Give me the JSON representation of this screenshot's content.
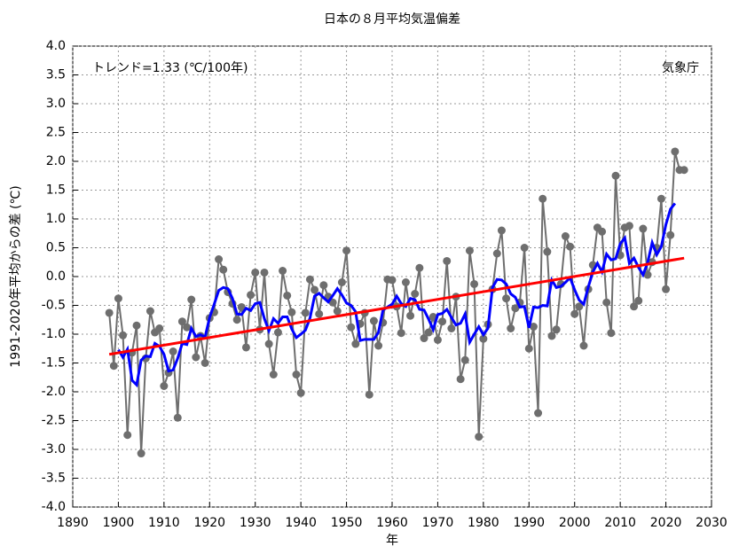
{
  "chart_data": {
    "type": "line",
    "title": "日本の８月平均気温偏差",
    "xlabel": "年",
    "ylabel": "1991-2020年平均からの差 (℃)",
    "annotations": [
      "トレンド=1.33 (℃/100年)",
      "気象庁"
    ],
    "xlim": [
      1890,
      2030
    ],
    "xticks": [
      1890,
      1900,
      1910,
      1920,
      1930,
      1940,
      1950,
      1960,
      1970,
      1980,
      1990,
      2000,
      2010,
      2020,
      2030
    ],
    "ylim": [
      -4.0,
      4.0
    ],
    "yticks": [
      {
        "value": -4.0,
        "label": "-4.0"
      },
      {
        "value": -3.5,
        "label": "-3.5"
      },
      {
        "value": -3.0,
        "label": "-3.0"
      },
      {
        "value": -2.5,
        "label": "-2.5"
      },
      {
        "value": -2.0,
        "label": "-2.0"
      },
      {
        "value": -1.5,
        "label": "-1.5"
      },
      {
        "value": -1.0,
        "label": "-1.0"
      },
      {
        "value": -0.5,
        "label": "-0.5"
      },
      {
        "value": 0,
        "label": "0.0"
      },
      {
        "value": 0.5,
        "label": "0.5"
      },
      {
        "value": 1.0,
        "label": "1.0"
      },
      {
        "value": 1.5,
        "label": "1.5"
      },
      {
        "value": 2.0,
        "label": "2.0"
      },
      {
        "value": 2.5,
        "label": "2.5"
      },
      {
        "value": 3.0,
        "label": "3.0"
      },
      {
        "value": 3.5,
        "label": "3.5"
      },
      {
        "value": 4.0,
        "label": "4.0"
      }
    ],
    "grid": true,
    "series": [
      {
        "color": "#6e6e6e",
        "marker": true,
        "width": 2,
        "x": [
          1898,
          1899,
          1900,
          1901,
          1902,
          1903,
          1904,
          1905,
          1906,
          1907,
          1908,
          1909,
          1910,
          1911,
          1912,
          1913,
          1914,
          1915,
          1916,
          1917,
          1918,
          1919,
          1920,
          1921,
          1922,
          1923,
          1924,
          1925,
          1926,
          1927,
          1928,
          1929,
          1930,
          1931,
          1932,
          1933,
          1934,
          1935,
          1936,
          1937,
          1938,
          1939,
          1940,
          1941,
          1942,
          1943,
          1944,
          1945,
          1946,
          1947,
          1948,
          1949,
          1950,
          1951,
          1952,
          1953,
          1954,
          1955,
          1956,
          1957,
          1958,
          1959,
          1960,
          1961,
          1962,
          1963,
          1964,
          1965,
          1966,
          1967,
          1968,
          1969,
          1970,
          1971,
          1972,
          1973,
          1974,
          1975,
          1976,
          1977,
          1978,
          1979,
          1980,
          1981,
          1982,
          1983,
          1984,
          1985,
          1986,
          1987,
          1988,
          1989,
          1990,
          1991,
          1992,
          1993,
          1994,
          1995,
          1996,
          1997,
          1998,
          1999,
          2000,
          2001,
          2002,
          2003,
          2004,
          2005,
          2006,
          2007,
          2008,
          2009,
          2010,
          2011,
          2012,
          2013,
          2014,
          2015,
          2016,
          2017,
          2018,
          2019,
          2020,
          2021,
          2022,
          2023,
          2024
        ],
        "values": [
          -0.63,
          -1.55,
          -0.38,
          -1.02,
          -2.75,
          -1.32,
          -0.85,
          -3.07,
          -1.42,
          -0.6,
          -0.97,
          -0.9,
          -1.9,
          -1.67,
          -1.3,
          -2.45,
          -0.78,
          -0.88,
          -0.4,
          -1.4,
          -1.03,
          -1.5,
          -0.72,
          -0.62,
          0.3,
          0.12,
          -0.27,
          -0.47,
          -0.75,
          -0.53,
          -1.23,
          -0.32,
          0.07,
          -0.92,
          0.07,
          -1.17,
          -1.7,
          -0.97,
          0.1,
          -0.33,
          -0.62,
          -1.7,
          -2.02,
          -0.63,
          -0.05,
          -0.23,
          -0.65,
          -0.15,
          -0.35,
          -0.45,
          -0.6,
          -0.1,
          0.45,
          -0.88,
          -1.17,
          -0.82,
          -0.63,
          -2.05,
          -0.77,
          -1.2,
          -0.8,
          -0.05,
          -0.06,
          -0.52,
          -0.98,
          -0.1,
          -0.68,
          -0.3,
          0.15,
          -1.07,
          -0.97,
          -0.7,
          -1.1,
          -0.78,
          0.27,
          -0.9,
          -0.35,
          -1.78,
          -1.45,
          0.45,
          -0.13,
          -2.78,
          -1.08,
          -0.83,
          -0.22,
          0.4,
          0.8,
          -0.38,
          -0.9,
          -0.55,
          -0.45,
          0.5,
          -1.25,
          -0.87,
          -2.37,
          1.35,
          0.43,
          -1.03,
          -0.92,
          -0.13,
          0.7,
          0.52,
          -0.65,
          -0.52,
          -1.2,
          -0.22,
          0.2,
          0.85,
          0.78,
          -0.45,
          -0.98,
          1.75,
          0.37,
          0.85,
          0.88,
          -0.52,
          -0.42,
          0.83,
          0.03,
          0.25,
          0.5,
          1.35,
          -0.22,
          0.72,
          2.17,
          1.85,
          1.85
        ]
      },
      {
        "color": "#0000ff",
        "marker": false,
        "width": 3,
        "x": [
          1900,
          1901,
          1902,
          1903,
          1904,
          1905,
          1906,
          1907,
          1908,
          1909,
          1910,
          1911,
          1912,
          1913,
          1914,
          1915,
          1916,
          1917,
          1918,
          1919,
          1920,
          1921,
          1922,
          1923,
          1924,
          1925,
          1926,
          1927,
          1928,
          1929,
          1930,
          1931,
          1932,
          1933,
          1934,
          1935,
          1936,
          1937,
          1938,
          1939,
          1940,
          1941,
          1942,
          1943,
          1944,
          1945,
          1946,
          1947,
          1948,
          1949,
          1950,
          1951,
          1952,
          1953,
          1954,
          1955,
          1956,
          1957,
          1958,
          1959,
          1960,
          1961,
          1962,
          1963,
          1964,
          1965,
          1966,
          1967,
          1968,
          1969,
          1970,
          1971,
          1972,
          1973,
          1974,
          1975,
          1976,
          1977,
          1978,
          1979,
          1980,
          1981,
          1982,
          1983,
          1984,
          1985,
          1986,
          1987,
          1988,
          1989,
          1990,
          1991,
          1992,
          1993,
          1994,
          1995,
          1996,
          1997,
          1998,
          1999,
          2000,
          2001,
          2002,
          2003,
          2004,
          2005,
          2006,
          2007,
          2008,
          2009,
          2010,
          2011,
          2012,
          2013,
          2014,
          2015,
          2016,
          2017,
          2018,
          2019,
          2020,
          2021,
          2022
        ],
        "values": [
          -1.27,
          -1.4,
          -1.26,
          -1.8,
          -1.88,
          -1.45,
          -1.38,
          -1.39,
          -1.16,
          -1.21,
          -1.35,
          -1.64,
          -1.62,
          -1.42,
          -1.16,
          -1.18,
          -0.9,
          -1.04,
          -1.01,
          -1.05,
          -0.71,
          -0.48,
          -0.24,
          -0.19,
          -0.21,
          -0.38,
          -0.65,
          -0.66,
          -0.55,
          -0.59,
          -0.47,
          -0.45,
          -0.73,
          -0.94,
          -0.73,
          -0.81,
          -0.7,
          -0.7,
          -0.91,
          -1.06,
          -1.0,
          -0.93,
          -0.72,
          -0.34,
          -0.29,
          -0.37,
          -0.44,
          -0.33,
          -0.21,
          -0.32,
          -0.46,
          -0.5,
          -0.61,
          -1.11,
          -1.09,
          -1.09,
          -1.09,
          -0.97,
          -0.58,
          -0.53,
          -0.48,
          -0.34,
          -0.47,
          -0.52,
          -0.38,
          -0.4,
          -0.57,
          -0.58,
          -0.74,
          -0.92,
          -0.66,
          -0.64,
          -0.57,
          -0.71,
          -0.84,
          -0.81,
          -0.65,
          -1.14,
          -1.0,
          -0.87,
          -1.01,
          -0.9,
          -0.19,
          -0.05,
          -0.06,
          -0.13,
          -0.3,
          -0.36,
          -0.53,
          -0.52,
          -0.89,
          -0.53,
          -0.54,
          -0.5,
          -0.51,
          -0.06,
          -0.19,
          -0.17,
          -0.1,
          -0.02,
          -0.23,
          -0.41,
          -0.48,
          -0.18,
          0.08,
          0.23,
          0.08,
          0.39,
          0.29,
          0.31,
          0.57,
          0.67,
          0.23,
          0.32,
          0.16,
          0.03,
          0.24,
          0.59,
          0.38,
          0.52,
          0.9,
          1.17,
          1.27
        ]
      },
      {
        "color": "#ff0000",
        "marker": false,
        "width": 3,
        "x": [
          1898,
          2024
        ],
        "values": [
          -1.35,
          0.32
        ]
      }
    ]
  }
}
